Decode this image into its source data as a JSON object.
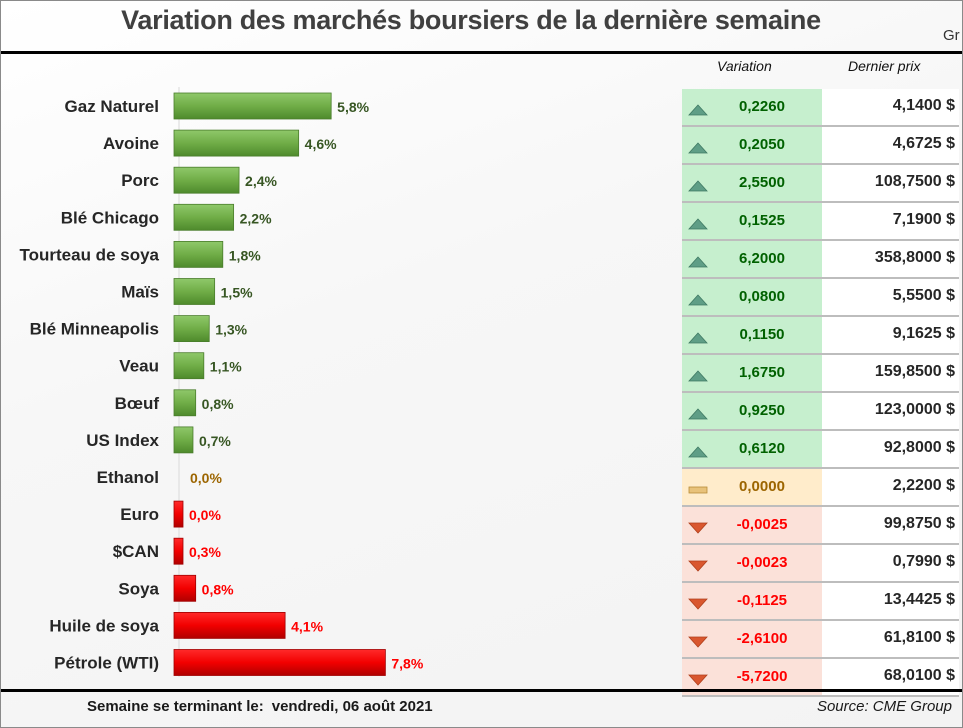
{
  "header": {
    "title": "Variation des marchés boursiers de la dernière semaine",
    "corner_text": "Gr"
  },
  "table": {
    "col_variation": "Variation",
    "col_price": "Dernier prix",
    "rows": [
      {
        "trend": "up",
        "trend_icon": "triangle-up-icon",
        "variation": "0,2260",
        "price": "4,1400 $"
      },
      {
        "trend": "up",
        "trend_icon": "triangle-up-icon",
        "variation": "0,2050",
        "price": "4,6725 $"
      },
      {
        "trend": "up",
        "trend_icon": "triangle-up-icon",
        "variation": "2,5500",
        "price": "108,7500 $"
      },
      {
        "trend": "up",
        "trend_icon": "triangle-up-icon",
        "variation": "0,1525",
        "price": "7,1900 $"
      },
      {
        "trend": "up",
        "trend_icon": "triangle-up-icon",
        "variation": "6,2000",
        "price": "358,8000 $"
      },
      {
        "trend": "up",
        "trend_icon": "triangle-up-icon",
        "variation": "0,0800",
        "price": "5,5500 $"
      },
      {
        "trend": "up",
        "trend_icon": "triangle-up-icon",
        "variation": "0,1150",
        "price": "9,1625 $"
      },
      {
        "trend": "up",
        "trend_icon": "triangle-up-icon",
        "variation": "1,6750",
        "price": "159,8500 $"
      },
      {
        "trend": "up",
        "trend_icon": "triangle-up-icon",
        "variation": "0,9250",
        "price": "123,0000 $"
      },
      {
        "trend": "up",
        "trend_icon": "triangle-up-icon",
        "variation": "0,6120",
        "price": "92,8000 $"
      },
      {
        "trend": "flat",
        "trend_icon": "dash-icon",
        "variation": "0,0000",
        "price": "2,2200 $"
      },
      {
        "trend": "down",
        "trend_icon": "triangle-down-icon",
        "variation": "-0,0025",
        "price": "99,8750 $"
      },
      {
        "trend": "down",
        "trend_icon": "triangle-down-icon",
        "variation": "-0,0023",
        "price": "0,7990 $"
      },
      {
        "trend": "down",
        "trend_icon": "triangle-down-icon",
        "variation": "-0,1125",
        "price": "13,4425 $"
      },
      {
        "trend": "down",
        "trend_icon": "triangle-down-icon",
        "variation": "-2,6100",
        "price": "61,8100 $"
      },
      {
        "trend": "down",
        "trend_icon": "triangle-down-icon",
        "variation": "-5,7200",
        "price": "68,0100 $"
      }
    ]
  },
  "colors": {
    "up_bar": "#70ad47",
    "down_bar": "#ff0000",
    "up_label": "#375623",
    "flat_label": "#9c6500",
    "down_label": "#ff0000"
  },
  "chart_data": {
    "type": "bar",
    "orientation": "horizontal",
    "title": "Variation des marchés boursiers de la dernière semaine",
    "xlabel": "",
    "ylabel": "",
    "grid": false,
    "legend": "none",
    "categories": [
      "Gaz Naturel",
      "Avoine",
      "Porc",
      "Blé Chicago",
      "Tourteau de soya",
      "Maïs",
      "Blé Minneapolis",
      "Veau",
      "Bœuf",
      "US Index",
      "Ethanol",
      "Euro",
      "$CAN",
      "Soya",
      "Huile de soya",
      "Pétrole (WTI)"
    ],
    "values": [
      5.8,
      4.6,
      2.4,
      2.2,
      1.8,
      1.5,
      1.3,
      1.1,
      0.8,
      0.7,
      0.0,
      0.0,
      0.3,
      0.8,
      4.1,
      7.8
    ],
    "labels": [
      "5,8%",
      "4,6%",
      "2,4%",
      "2,2%",
      "1,8%",
      "1,5%",
      "1,3%",
      "1,1%",
      "0,8%",
      "0,7%",
      "0,0%",
      "0,0%",
      "0,3%",
      "0,8%",
      "4,1%",
      "7,8%"
    ],
    "direction": [
      "up",
      "up",
      "up",
      "up",
      "up",
      "up",
      "up",
      "up",
      "up",
      "up",
      "flat",
      "down",
      "down",
      "down",
      "down",
      "down"
    ],
    "xlim": [
      0,
      9
    ]
  },
  "footer": {
    "week_label": "Semaine se terminant le:",
    "week_date": "vendredi, 06 août 2021",
    "source": "Source: CME Group"
  }
}
